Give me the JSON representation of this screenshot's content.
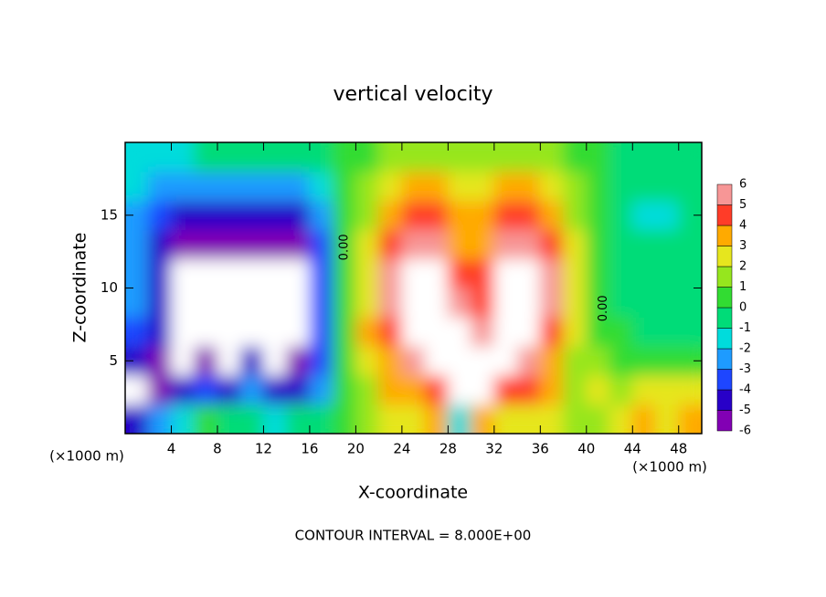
{
  "chart_data": {
    "type": "contour",
    "title": "vertical velocity",
    "xlabel": "X-coordinate",
    "ylabel": "Z-coordinate",
    "x_unit_left": "(×1000 m)",
    "x_unit_right": "(×1000 m)",
    "footer": "CONTOUR INTERVAL = 8.000E+00",
    "xlim": [
      0,
      50
    ],
    "ylim": [
      0,
      20
    ],
    "xticks": [
      4,
      8,
      12,
      16,
      20,
      24,
      28,
      32,
      36,
      40,
      44,
      48
    ],
    "yticks": [
      5,
      10,
      15
    ],
    "x": [
      1,
      3,
      5,
      7,
      9,
      11,
      13,
      15,
      17,
      19,
      21,
      23,
      25,
      27,
      29,
      31,
      33,
      35,
      37,
      39,
      41,
      43,
      45,
      47,
      49
    ],
    "y": [
      1,
      3,
      5,
      7,
      9,
      11,
      13,
      15,
      17,
      19
    ],
    "z": [
      [
        -4.5,
        -3,
        -2,
        0.5,
        -1,
        -1,
        -2,
        -1,
        -0.5,
        0.3,
        1.5,
        2.5,
        2,
        3,
        -2,
        3,
        2,
        2.5,
        2,
        1,
        1,
        2,
        3,
        2.5,
        3
      ],
      [
        -6.5,
        -6,
        -5,
        -4,
        -5,
        -3,
        -5,
        -5,
        -3,
        0,
        1.5,
        3,
        3.5,
        4.5,
        6.5,
        6.5,
        4,
        4,
        3,
        1.5,
        2,
        1.5,
        2.5,
        2,
        2.5
      ],
      [
        -5,
        -6,
        -7,
        -6,
        -7,
        -5,
        -7,
        -6,
        -3.5,
        0,
        2,
        3.5,
        5,
        6.5,
        7,
        6.5,
        6.5,
        5,
        3.5,
        1.5,
        1,
        0.5,
        0.5,
        0.3,
        0.3
      ],
      [
        -3.5,
        -5,
        -7,
        -8,
        -7.5,
        -7,
        -7.5,
        -7,
        -4,
        0,
        3,
        4.5,
        6.5,
        7,
        6,
        5.5,
        6.5,
        6,
        4.5,
        2,
        0.5,
        0.3,
        -0.3,
        -0.3,
        -0.3
      ],
      [
        -3,
        -5,
        -7,
        -8,
        -7,
        -7,
        -7.5,
        -7,
        -4,
        0,
        2.5,
        5,
        7,
        6,
        5,
        4,
        6,
        7,
        5,
        2,
        0.2,
        -0.5,
        -0.3,
        -0.3,
        -0.3
      ],
      [
        -3,
        -5,
        -7,
        -7,
        -7,
        -6.5,
        -7,
        -7,
        -4,
        0,
        2.5,
        5,
        7,
        7,
        4.5,
        4,
        6,
        7,
        5,
        2,
        0.2,
        -0.5,
        -0.5,
        -0.5,
        -0.5
      ],
      [
        -3,
        -4.5,
        -5.5,
        -5.5,
        -5.5,
        -5.5,
        -5.5,
        -5.5,
        -3.5,
        0,
        2,
        4.5,
        5.5,
        5,
        3.5,
        3.5,
        5,
        5.5,
        4.5,
        2,
        0.2,
        -0.5,
        -1,
        -1,
        -0.5
      ],
      [
        -3,
        -4,
        -4.5,
        -5,
        -5,
        -5,
        -5,
        -4.5,
        -3,
        0.2,
        1.5,
        3.5,
        4.5,
        4.5,
        3,
        3,
        4.5,
        4.5,
        3.5,
        1.5,
        0.2,
        -0.5,
        -1.5,
        -2,
        -0.5
      ],
      [
        -2,
        -2.5,
        -3,
        -3,
        -3,
        -3,
        -3,
        -2.5,
        -2,
        0.3,
        1,
        2,
        3,
        3,
        2,
        2,
        3,
        3.5,
        2.5,
        1,
        0.3,
        -0.5,
        -0.8,
        -1,
        -0.5
      ],
      [
        -1.5,
        -1.5,
        -1.5,
        -1,
        -1,
        -1,
        -1,
        -1,
        -0.5,
        0.3,
        0.8,
        1,
        1.5,
        1.5,
        1,
        1,
        1.5,
        1.5,
        1,
        0.8,
        0.3,
        -0.3,
        -0.5,
        -0.5,
        -0.5
      ]
    ],
    "colorbar": {
      "levels": [
        -6,
        -5,
        -4,
        -3,
        -2,
        -1,
        0,
        1,
        2,
        3,
        4,
        5,
        6
      ],
      "colors": [
        "#8200b4",
        "#2800c8",
        "#1e46ff",
        "#1e9bff",
        "#00dcdc",
        "#00dc78",
        "#32dc32",
        "#96e61e",
        "#e6e61e",
        "#ffaa00",
        "#ff3c28",
        "#f79696"
      ],
      "over_color": "#ffffff",
      "under_color": "#ffffff"
    },
    "annotations": [
      {
        "text": "0.00",
        "x": 19,
        "y": 12.8
      },
      {
        "text": "0.00",
        "x": 41.5,
        "y": 8.6
      }
    ]
  }
}
